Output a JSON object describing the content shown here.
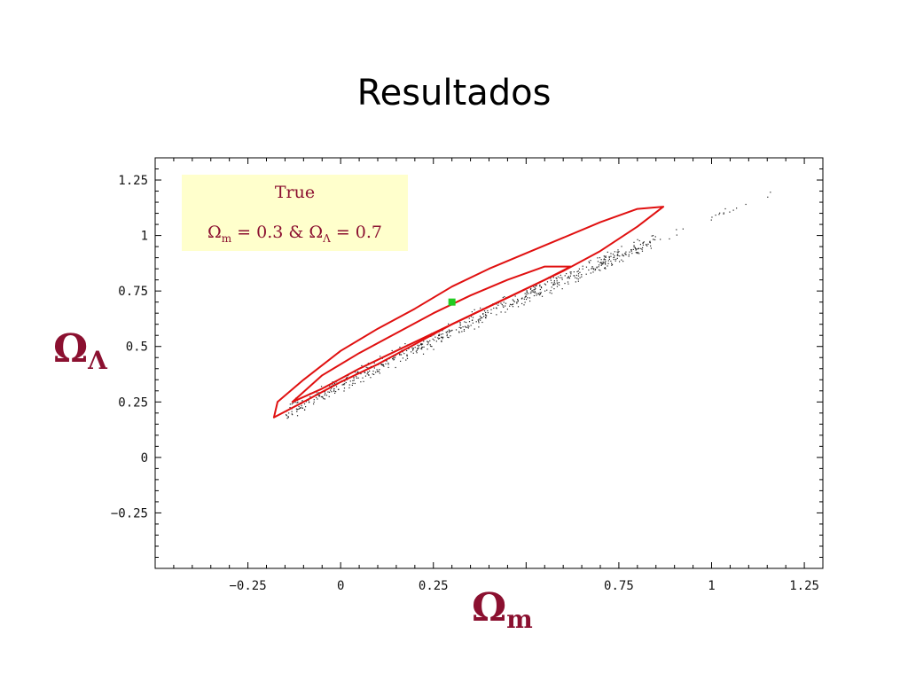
{
  "slide": {
    "title": "Resultados"
  },
  "chart_data": {
    "type": "scatter",
    "xlabel_symbol": "Ω",
    "xlabel_subscript": "m",
    "ylabel_symbol": "Ω",
    "ylabel_subscript": "Λ",
    "xlim": [
      -0.5,
      1.3
    ],
    "ylim": [
      -0.5,
      1.35
    ],
    "x_ticks": [
      {
        "value": -0.25,
        "label": "−0.25"
      },
      {
        "value": 0,
        "label": "0"
      },
      {
        "value": 0.25,
        "label": "0.25"
      },
      {
        "value": 0.75,
        "label": "0.75"
      },
      {
        "value": 1,
        "label": "1"
      },
      {
        "value": 1.25,
        "label": "1.25"
      }
    ],
    "y_ticks": [
      {
        "value": 1.25,
        "label": "1.25"
      },
      {
        "value": 1,
        "label": "1"
      },
      {
        "value": 0.75,
        "label": "0.75"
      },
      {
        "value": 0.5,
        "label": "0.5"
      },
      {
        "value": 0.25,
        "label": "0.25"
      },
      {
        "value": 0,
        "label": "0"
      },
      {
        "value": -0.25,
        "label": "−0.25"
      }
    ],
    "grid": false,
    "legend": {
      "placement": "top-left",
      "title": "True",
      "om_symbol": "Ω",
      "om_sub": "m",
      "om_text": " = 0.3 & ",
      "ol_symbol": "Ω",
      "ol_sub": "Λ",
      "ol_text": " = 0.7"
    },
    "true_point": {
      "x": 0.3,
      "y": 0.7,
      "color": "#22cc22"
    },
    "contours": [
      {
        "name": "outer",
        "color": "#e01010",
        "points": [
          [
            -0.18,
            0.18
          ],
          [
            -0.1,
            0.25
          ],
          [
            0.0,
            0.34
          ],
          [
            0.1,
            0.42
          ],
          [
            0.2,
            0.51
          ],
          [
            0.3,
            0.6
          ],
          [
            0.4,
            0.68
          ],
          [
            0.5,
            0.76
          ],
          [
            0.6,
            0.84
          ],
          [
            0.7,
            0.93
          ],
          [
            0.8,
            1.04
          ],
          [
            0.87,
            1.13
          ],
          [
            0.8,
            1.12
          ],
          [
            0.7,
            1.06
          ],
          [
            0.6,
            0.99
          ],
          [
            0.5,
            0.92
          ],
          [
            0.4,
            0.85
          ],
          [
            0.3,
            0.77
          ],
          [
            0.2,
            0.67
          ],
          [
            0.1,
            0.58
          ],
          [
            0.0,
            0.48
          ],
          [
            -0.1,
            0.35
          ],
          [
            -0.17,
            0.25
          ],
          [
            -0.18,
            0.18
          ]
        ]
      },
      {
        "name": "inner",
        "color": "#e01010",
        "points": [
          [
            -0.13,
            0.25
          ],
          [
            -0.05,
            0.31
          ],
          [
            0.05,
            0.4
          ],
          [
            0.15,
            0.48
          ],
          [
            0.25,
            0.56
          ],
          [
            0.35,
            0.64
          ],
          [
            0.45,
            0.72
          ],
          [
            0.55,
            0.8
          ],
          [
            0.62,
            0.86
          ],
          [
            0.55,
            0.86
          ],
          [
            0.45,
            0.8
          ],
          [
            0.35,
            0.73
          ],
          [
            0.25,
            0.65
          ],
          [
            0.15,
            0.56
          ],
          [
            0.05,
            0.47
          ],
          [
            -0.05,
            0.37
          ],
          [
            -0.13,
            0.25
          ]
        ]
      }
    ],
    "samples": {
      "color": "#222222",
      "x_range": [
        -0.18,
        1.17
      ],
      "count": 700
    },
    "colors": {
      "axis": "#000000",
      "label": "#8b1030",
      "legend_bg": "#ffffcc"
    }
  }
}
